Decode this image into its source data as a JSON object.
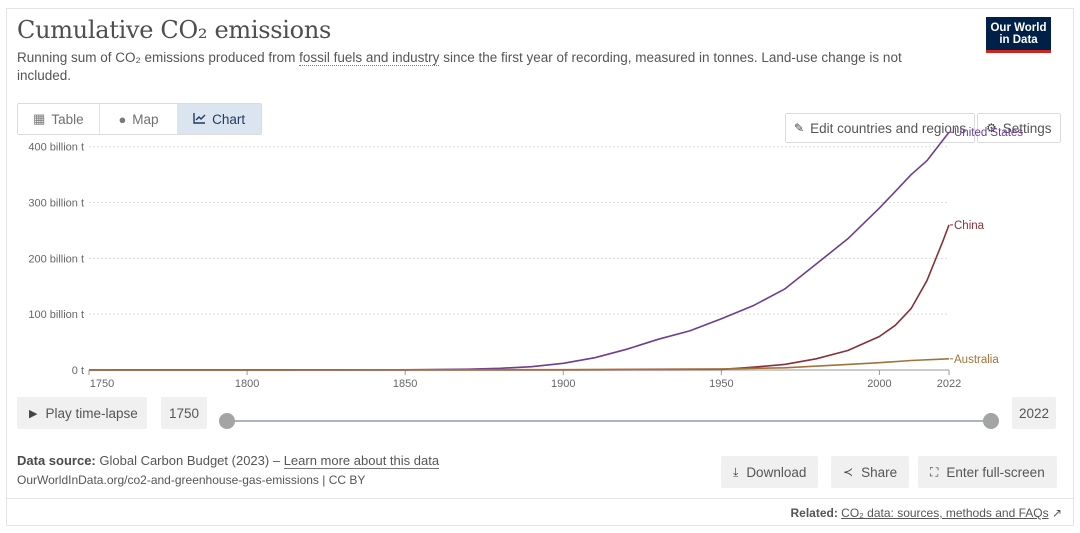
{
  "header": {
    "title": "Cumulative CO₂ emissions",
    "subtitle_pre": "Running sum of CO₂ emissions produced from ",
    "subtitle_link": "fossil fuels and industry",
    "subtitle_post": " since the first year of recording, measured in tonnes. Land-use change is not included.",
    "logo_line1": "Our World",
    "logo_line2": "in Data"
  },
  "tabs": [
    {
      "label": "Table",
      "icon": "table-icon"
    },
    {
      "label": "Map",
      "icon": "globe-icon"
    },
    {
      "label": "Chart",
      "icon": "line-chart-icon"
    }
  ],
  "toolbar": {
    "edit_label": "Edit countries and regions",
    "settings_label": "Settings"
  },
  "chart_data": {
    "type": "line",
    "title": "Cumulative CO₂ emissions",
    "xlabel": "",
    "ylabel": "",
    "xlim": [
      1750,
      2022
    ],
    "ylim": [
      0,
      430
    ],
    "x_ticks": [
      1750,
      1800,
      1850,
      1900,
      1950,
      2000,
      2022
    ],
    "y_ticks": [
      0,
      100,
      200,
      300,
      400
    ],
    "y_tick_labels": [
      "0 t",
      "100 billion t",
      "200 billion t",
      "300 billion t",
      "400 billion t"
    ],
    "grid": "horizontal-dotted",
    "legend": "inline-right",
    "series": [
      {
        "name": "United States",
        "color": "#6d3e91",
        "points": [
          [
            1750,
            0
          ],
          [
            1800,
            0.1
          ],
          [
            1850,
            0.4
          ],
          [
            1870,
            1.5
          ],
          [
            1880,
            3
          ],
          [
            1890,
            6
          ],
          [
            1900,
            12
          ],
          [
            1910,
            22
          ],
          [
            1920,
            37
          ],
          [
            1930,
            55
          ],
          [
            1940,
            70
          ],
          [
            1950,
            92
          ],
          [
            1960,
            115
          ],
          [
            1970,
            145
          ],
          [
            1980,
            190
          ],
          [
            1990,
            235
          ],
          [
            2000,
            290
          ],
          [
            2005,
            320
          ],
          [
            2010,
            350
          ],
          [
            2015,
            375
          ],
          [
            2022,
            426
          ]
        ]
      },
      {
        "name": "China",
        "color": "#883039",
        "points": [
          [
            1750,
            0
          ],
          [
            1900,
            0.1
          ],
          [
            1950,
            1
          ],
          [
            1960,
            5
          ],
          [
            1970,
            10
          ],
          [
            1980,
            20
          ],
          [
            1990,
            35
          ],
          [
            2000,
            60
          ],
          [
            2005,
            80
          ],
          [
            2010,
            110
          ],
          [
            2015,
            160
          ],
          [
            2020,
            230
          ],
          [
            2022,
            260
          ]
        ]
      },
      {
        "name": "Australia",
        "color": "#a2723a",
        "points": [
          [
            1750,
            0
          ],
          [
            1900,
            0.5
          ],
          [
            1950,
            2
          ],
          [
            1970,
            4
          ],
          [
            1990,
            10
          ],
          [
            2000,
            13
          ],
          [
            2010,
            17
          ],
          [
            2022,
            20
          ]
        ]
      }
    ]
  },
  "timeline": {
    "play_label": "Play time-lapse",
    "start_year": "1750",
    "end_year": "2022"
  },
  "footer": {
    "source_label": "Data source:",
    "source_value": "Global Carbon Budget (2023)",
    "source_sep": " – ",
    "learn_more": "Learn more about this data",
    "url": "OurWorldInData.org/co2-and-greenhouse-gas-emissions | CC BY",
    "download_label": "Download",
    "share_label": "Share",
    "fullscreen_label": "Enter full-screen",
    "related_label": "Related:",
    "related_link": "CO₂ data: sources, methods and FAQs"
  }
}
